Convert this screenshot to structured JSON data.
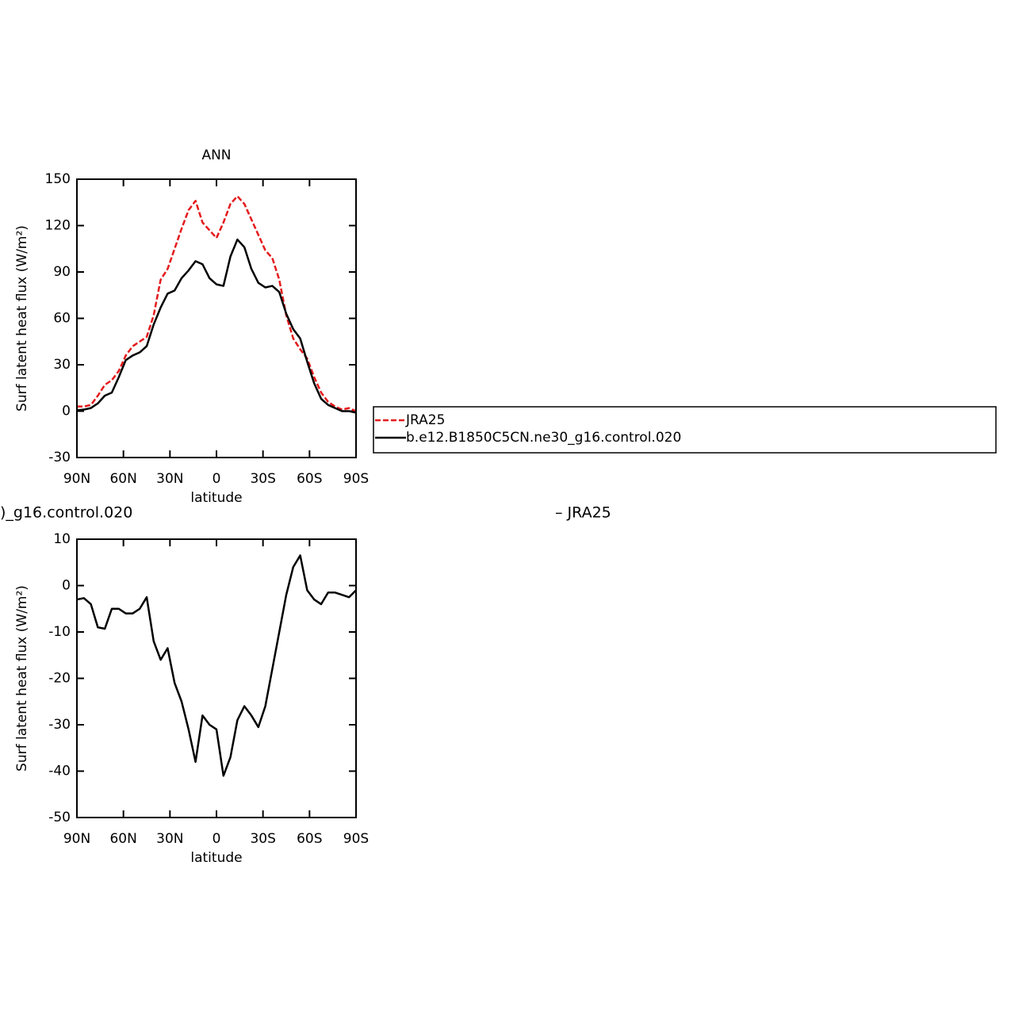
{
  "chart_data": [
    {
      "type": "line",
      "title": "ANN",
      "xlabel": "latitude",
      "ylabel": "Surf latent heat flux (W/m²)",
      "x": [
        90,
        85.5,
        81,
        76.5,
        72,
        67.5,
        63,
        58.5,
        54,
        49.5,
        45,
        40.5,
        36,
        31.5,
        27,
        22.5,
        18,
        13.5,
        9,
        4.5,
        0,
        -4.5,
        -9,
        -13.5,
        -18,
        -22.5,
        -27,
        -31.5,
        -36,
        -40.5,
        -45,
        -49.5,
        -54,
        -58.5,
        -63,
        -67.5,
        -72,
        -76.5,
        -81,
        -85.5,
        -90
      ],
      "series": [
        {
          "name": "JRA25",
          "color": "#e41a1c",
          "dash": true,
          "values": [
            3,
            3,
            4,
            10,
            17,
            20,
            26,
            36,
            42,
            45,
            48,
            62,
            85,
            92,
            105,
            118,
            130,
            136,
            122,
            117,
            112,
            122,
            134,
            139,
            134,
            124,
            114,
            104,
            99,
            85,
            62,
            47,
            40,
            34,
            22,
            12,
            6,
            3,
            1,
            2,
            0
          ]
        },
        {
          "name": "b.e12.B1850C5CN.ne30_g16.control.020",
          "color": "#000000",
          "dash": false,
          "values": [
            0.5,
            1,
            2,
            5,
            10,
            12,
            22,
            33,
            36,
            38,
            42,
            56,
            67,
            76,
            78,
            86,
            91,
            97,
            95,
            86,
            82,
            81,
            100,
            111,
            106,
            92,
            83,
            80,
            81,
            77,
            63,
            53,
            47,
            32,
            18,
            8,
            4,
            2,
            0,
            0,
            -1
          ]
        }
      ],
      "xlim": [
        90,
        -90
      ],
      "xticks": [
        {
          "value": 90,
          "label": "90N"
        },
        {
          "value": 60,
          "label": "60N"
        },
        {
          "value": 30,
          "label": "30N"
        },
        0,
        {
          "value": -30,
          "label": "30S"
        },
        {
          "value": -60,
          "label": "60S"
        },
        {
          "value": -90,
          "label": "90S"
        }
      ],
      "ylim": [
        -30,
        150
      ],
      "yticks": [
        -30,
        0,
        30,
        60,
        90,
        120,
        150
      ],
      "legend": "right"
    },
    {
      "type": "line",
      "title_left": ")_g16.control.020",
      "title_right": "– JRA25",
      "xlabel": "latitude",
      "ylabel": "Surf latent heat flux (W/m²)",
      "x": [
        90,
        85.5,
        81,
        76.5,
        72,
        67.5,
        63,
        58.5,
        54,
        49.5,
        45,
        40.5,
        36,
        31.5,
        27,
        22.5,
        18,
        13.5,
        9,
        4.5,
        0,
        -4.5,
        -9,
        -13.5,
        -18,
        -22.5,
        -27,
        -31.5,
        -36,
        -40.5,
        -45,
        -49.5,
        -54,
        -58.5,
        -63,
        -67.5,
        -72,
        -76.5,
        -81,
        -85.5,
        -90
      ],
      "series": [
        {
          "color": "#000000",
          "dash": false,
          "values": [
            -3,
            -2.7,
            -4,
            -9,
            -9.3,
            -5,
            -5,
            -6,
            -6,
            -5,
            -2.5,
            -12,
            -16,
            -13.5,
            -21,
            -25,
            -31,
            -38,
            -28,
            -30,
            -31,
            -41,
            -37,
            -29,
            -26,
            -28,
            -30.5,
            -26,
            -18,
            -10,
            -2,
            4,
            6.5,
            -1,
            -3,
            -4,
            -1.5,
            -1.5,
            -2,
            -2.5,
            -1
          ]
        }
      ],
      "xlim": [
        90,
        -90
      ],
      "xticks": [
        {
          "value": 90,
          "label": "90N"
        },
        {
          "value": 60,
          "label": "60N"
        },
        {
          "value": 30,
          "label": "30N"
        },
        0,
        {
          "value": -30,
          "label": "30S"
        },
        {
          "value": -60,
          "label": "60S"
        },
        {
          "value": -90,
          "label": "90S"
        }
      ],
      "ylim": [
        -50,
        10
      ],
      "yticks": [
        -50,
        -40,
        -30,
        -20,
        -10,
        0,
        10
      ]
    }
  ]
}
